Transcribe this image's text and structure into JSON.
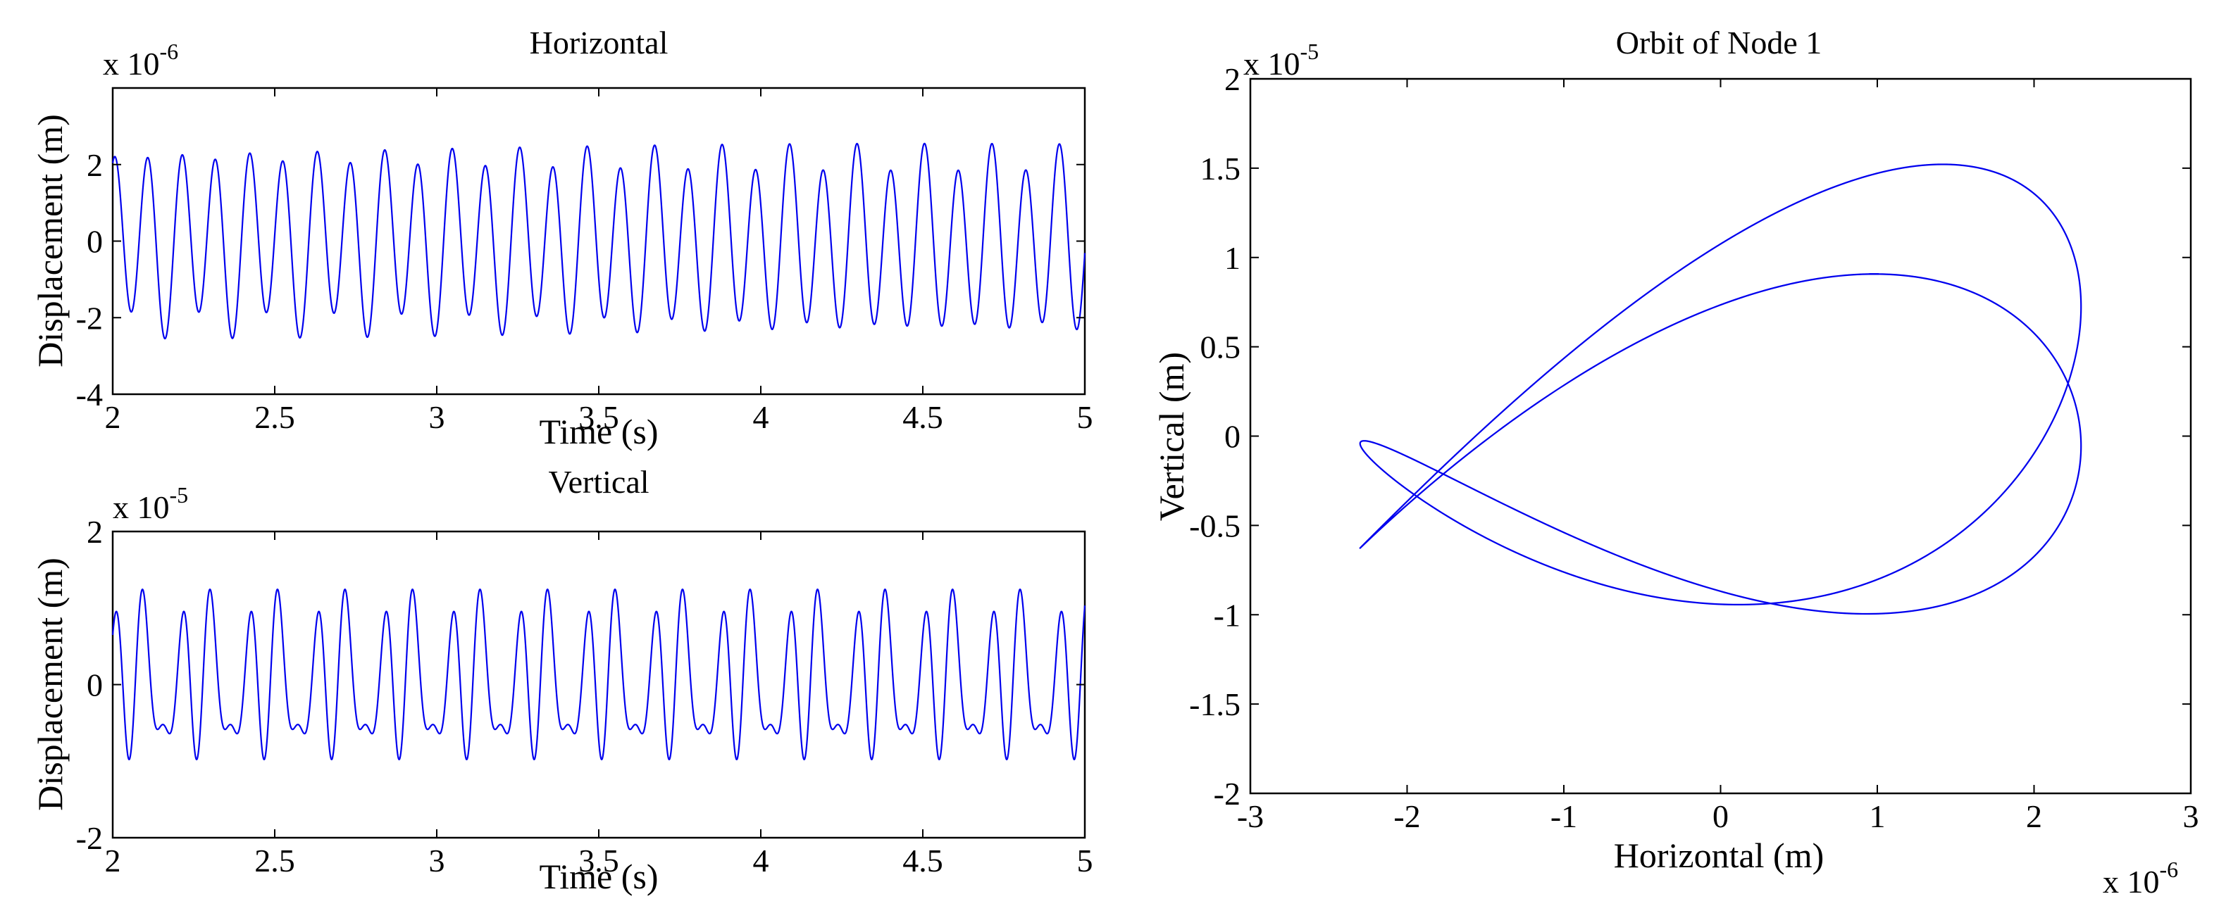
{
  "chart_data": [
    {
      "type": "line",
      "title": "Horizontal",
      "xlabel": "Time (s)",
      "ylabel": "Displacement  (m)",
      "y_multiplier": "x 10",
      "y_exponent": "-6",
      "xlim": [
        2,
        5
      ],
      "ylim": [
        -4,
        4
      ],
      "x_ticks": [
        2,
        2.5,
        3,
        3.5,
        4,
        4.5,
        5
      ],
      "x_tick_labels": [
        "2",
        "2.5",
        "3",
        "3.5",
        "4",
        "4.5",
        "5"
      ],
      "y_ticks": [
        -4,
        -2,
        0,
        2
      ],
      "y_tick_labels": [
        "-4",
        "-2",
        "0",
        "2"
      ],
      "signal": {
        "components": [
          {
            "amplitude": 2.2,
            "frequency_hz": 9.6,
            "phase": 0.0
          },
          {
            "amplitude": 0.35,
            "frequency_hz": 4.9,
            "phase": 1.1
          }
        ],
        "x_range": [
          2,
          5
        ]
      }
    },
    {
      "type": "line",
      "title": "Vertical",
      "xlabel": "Time (s)",
      "ylabel": "Displacement  (m)",
      "y_multiplier": "x 10",
      "y_exponent": "-5",
      "xlim": [
        2,
        5
      ],
      "ylim": [
        -2,
        2
      ],
      "x_ticks": [
        2,
        2.5,
        3,
        3.5,
        4,
        4.5,
        5
      ],
      "x_tick_labels": [
        "2",
        "2.5",
        "3",
        "3.5",
        "4",
        "4.5",
        "5"
      ],
      "y_ticks": [
        -2,
        0,
        2
      ],
      "y_tick_labels": [
        "-2",
        "0",
        "2"
      ],
      "signal": {
        "components": [
          {
            "amplitude": 0.75,
            "frequency_hz": 9.6,
            "phase": 0.4
          },
          {
            "amplitude": 0.5,
            "frequency_hz": 14.4,
            "phase": 1.3
          },
          {
            "amplitude": 0.3,
            "frequency_hz": 4.8,
            "phase": 2.1
          }
        ],
        "x_range": [
          2,
          5
        ]
      }
    },
    {
      "type": "line",
      "title": "Orbit of Node 1",
      "xlabel": "Horizontal (m)",
      "ylabel": "Vertical (m)",
      "x_multiplier": "x 10",
      "x_exponent": "-6",
      "y_multiplier": "x 10",
      "y_exponent": "-5",
      "xlim": [
        -3,
        3
      ],
      "ylim": [
        -2,
        2
      ],
      "x_ticks": [
        -3,
        -2,
        -1,
        0,
        1,
        2,
        3
      ],
      "x_tick_labels": [
        "-3",
        "-2",
        "-1",
        "0",
        "1",
        "2",
        "3"
      ],
      "y_ticks": [
        -2,
        -1.5,
        -1,
        -0.5,
        0,
        0.5,
        1,
        1.5,
        2
      ],
      "y_tick_labels": [
        "-2",
        "-1.5",
        "-1",
        "-0.5",
        "0",
        "0.5",
        "1",
        "1.5",
        "2"
      ],
      "orbit": {
        "x_amplitude": 2.3,
        "x_frequency_hz": 9.6,
        "x_phase": 0.0,
        "y_components": [
          {
            "amplitude": 0.8,
            "frequency_hz": 14.4,
            "phase": 0.6
          },
          {
            "amplitude": 0.55,
            "frequency_hz": 4.8,
            "phase": 1.9
          },
          {
            "amplitude": 0.35,
            "frequency_hz": 9.6,
            "phase": 0.3
          }
        ],
        "t_range": [
          2,
          5
        ]
      }
    }
  ]
}
